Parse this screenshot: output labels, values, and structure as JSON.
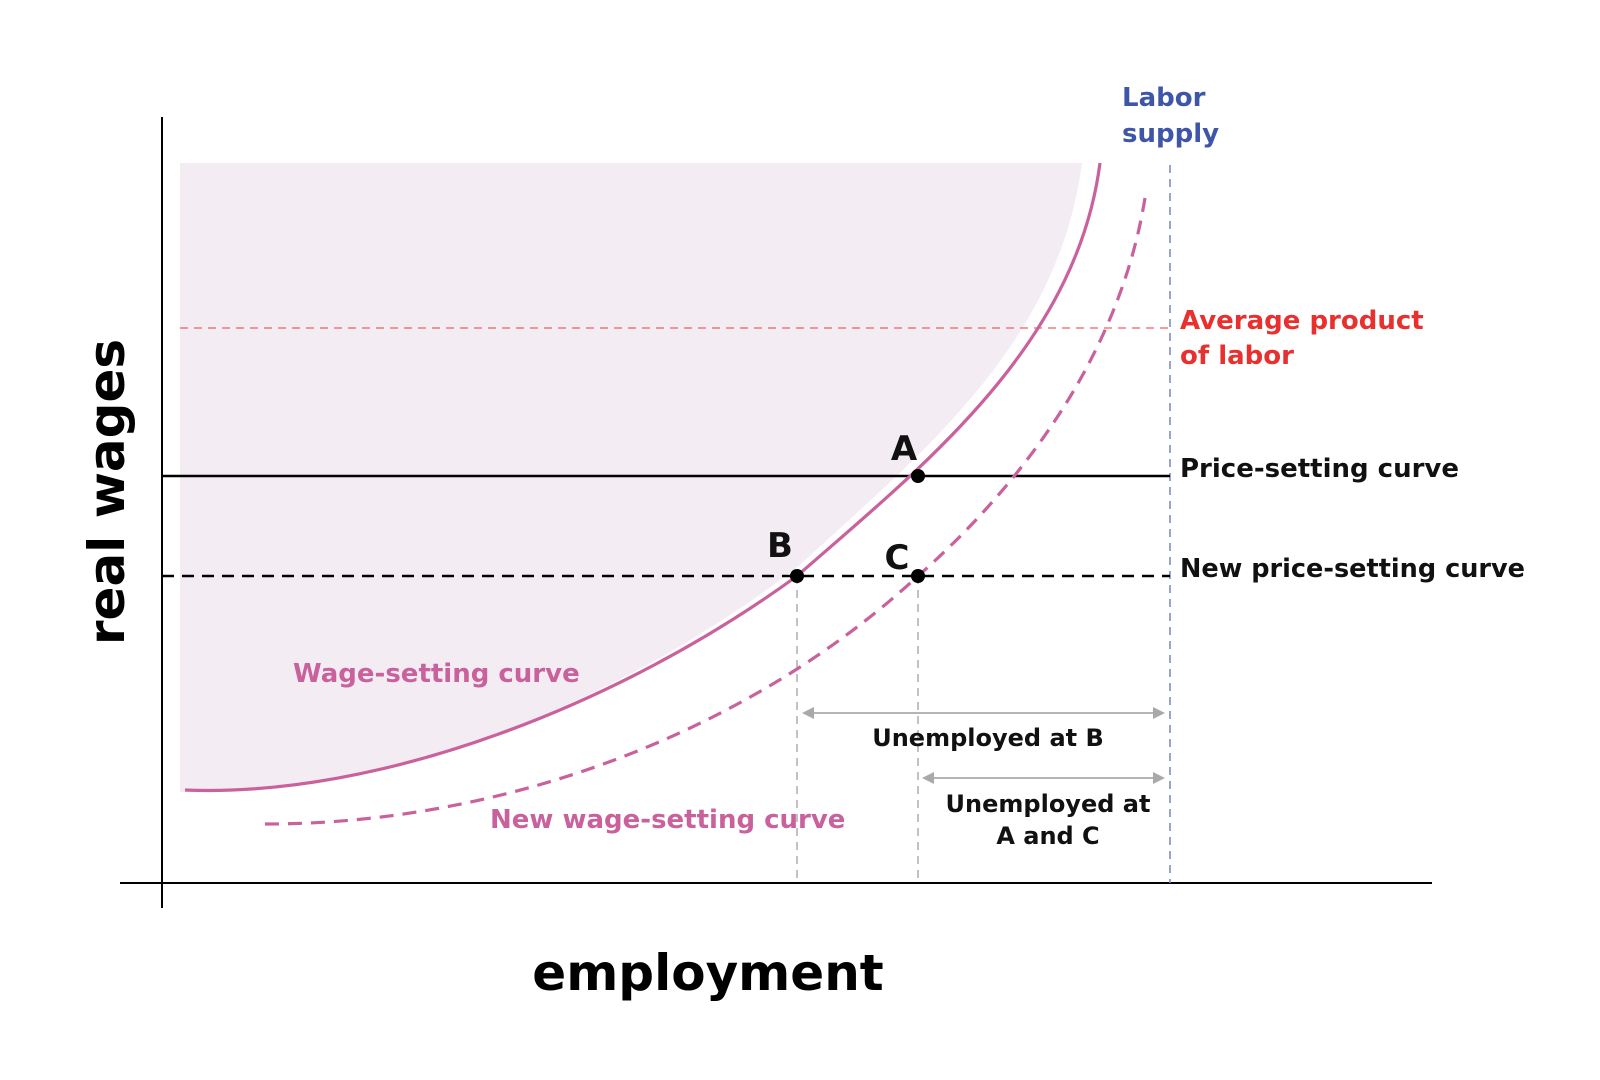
{
  "axes": {
    "x_label": "employment",
    "y_label": "real wages"
  },
  "curves": {
    "labor_supply": {
      "line1": "Labor",
      "line2": "supply"
    },
    "average_product": {
      "line1": "Average product",
      "line2": "of labor"
    },
    "price_setting": "Price-setting curve",
    "new_price_setting": "New price-setting curve",
    "wage_setting": "Wage-setting curve",
    "new_wage_setting": "New wage-setting curve"
  },
  "points": {
    "A": "A",
    "B": "B",
    "C": "C"
  },
  "spans": {
    "unemployed_b": "Unemployed at B",
    "unemployed_ac": {
      "line1": "Unemployed at",
      "line2": "A and C"
    }
  },
  "colors": {
    "wage_curve": "#c9619c",
    "shading": "#f4ecf3",
    "labor_supply": "#3f55a8",
    "average_product": "#e8302e",
    "axis": "#000000",
    "guide": "#a9a9a9"
  }
}
